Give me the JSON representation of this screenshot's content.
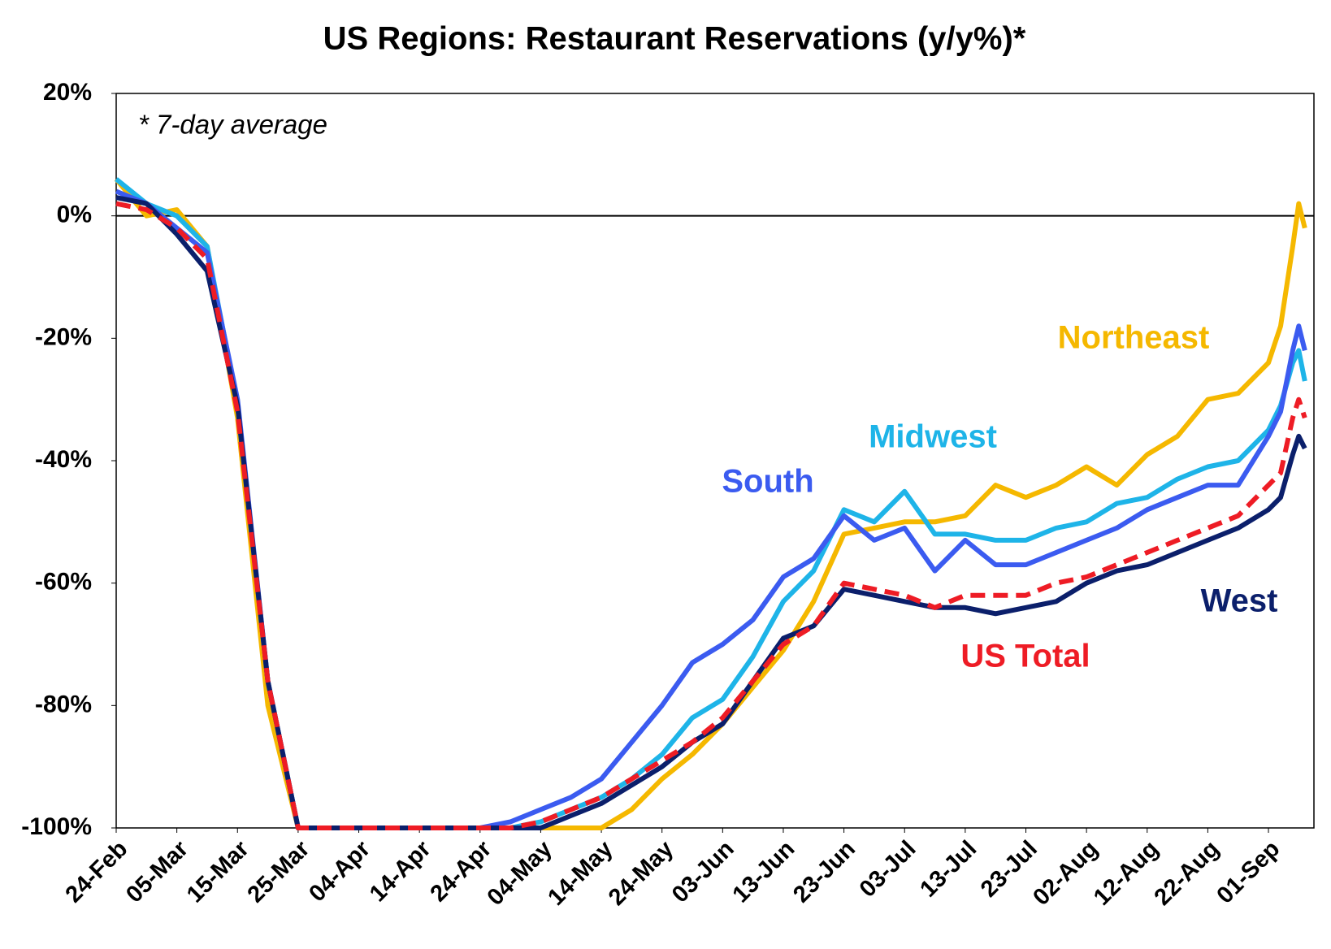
{
  "chart_data": {
    "type": "line",
    "title": "US Regions: Restaurant Reservations (y/y%)*",
    "annotation": "* 7-day average",
    "x": [
      "24-Feb",
      "29-Feb",
      "05-Mar",
      "10-Mar",
      "15-Mar",
      "20-Mar",
      "25-Mar",
      "30-Mar",
      "04-Apr",
      "09-Apr",
      "14-Apr",
      "19-Apr",
      "24-Apr",
      "29-Apr",
      "04-May",
      "09-May",
      "14-May",
      "19-May",
      "24-May",
      "29-May",
      "03-Jun",
      "08-Jun",
      "13-Jun",
      "18-Jun",
      "23-Jun",
      "28-Jun",
      "03-Jul",
      "08-Jul",
      "13-Jul",
      "18-Jul",
      "23-Jul",
      "28-Jul",
      "02-Aug",
      "07-Aug",
      "12-Aug",
      "17-Aug",
      "22-Aug",
      "27-Aug",
      "01-Sep",
      "03-Sep",
      "05-Sep",
      "06-Sep",
      "07-Sep"
    ],
    "series": [
      {
        "name": "Northeast",
        "color": "#f5b800",
        "values": [
          6,
          0,
          1,
          -5,
          -33,
          -80,
          -100,
          -100,
          -100,
          -100,
          -100,
          -100,
          -100,
          -100,
          -100,
          -100,
          -100,
          -97,
          -92,
          -88,
          -83,
          -77,
          -71,
          -63,
          -52,
          -51,
          -50,
          -50,
          -49,
          -44,
          -46,
          -44,
          -41,
          -44,
          -39,
          -36,
          -30,
          -29,
          -24,
          -18,
          -5,
          2,
          -2
        ]
      },
      {
        "name": "Midwest",
        "color": "#1eb4e8",
        "values": [
          6,
          2,
          0,
          -5,
          -31,
          -76,
          -100,
          -100,
          -100,
          -100,
          -100,
          -100,
          -100,
          -100,
          -99,
          -97,
          -95,
          -92,
          -88,
          -82,
          -79,
          -72,
          -63,
          -58,
          -48,
          -50,
          -45,
          -52,
          -52,
          -53,
          -53,
          -51,
          -50,
          -47,
          -46,
          -43,
          -41,
          -40,
          -35,
          -31,
          -24,
          -22,
          -27
        ]
      },
      {
        "name": "South",
        "color": "#3b5bf0",
        "values": [
          4,
          2,
          -2,
          -6,
          -30,
          -76,
          -100,
          -100,
          -100,
          -100,
          -100,
          -100,
          -100,
          -99,
          -97,
          -95,
          -92,
          -86,
          -80,
          -73,
          -70,
          -66,
          -59,
          -56,
          -49,
          -53,
          -51,
          -58,
          -53,
          -57,
          -57,
          -55,
          -53,
          -51,
          -48,
          -46,
          -44,
          -44,
          -36,
          -32,
          -22,
          -18,
          -22
        ]
      },
      {
        "name": "West",
        "color": "#0b1f6b",
        "values": [
          3,
          2,
          -3,
          -9,
          -31,
          -76,
          -100,
          -100,
          -100,
          -100,
          -100,
          -100,
          -100,
          -100,
          -100,
          -98,
          -96,
          -93,
          -90,
          -86,
          -83,
          -76,
          -69,
          -67,
          -61,
          -62,
          -63,
          -64,
          -64,
          -65,
          -64,
          -63,
          -60,
          -58,
          -57,
          -55,
          -53,
          -51,
          -48,
          -46,
          -39,
          -36,
          -38
        ]
      },
      {
        "name": "US Total",
        "color": "#ee1c25",
        "dashed": true,
        "values": [
          2,
          1,
          -2,
          -7,
          -32,
          -76,
          -100,
          -100,
          -100,
          -100,
          -100,
          -100,
          -100,
          -100,
          -99,
          -97,
          -95,
          -92,
          -89,
          -86,
          -82,
          -76,
          -70,
          -67,
          -60,
          -61,
          -62,
          -64,
          -62,
          -62,
          -62,
          -60,
          -59,
          -57,
          -55,
          -53,
          -51,
          -49,
          -44,
          -42,
          -33,
          -30,
          -33
        ]
      }
    ],
    "xticks": [
      "24-Feb",
      "05-Mar",
      "15-Mar",
      "25-Mar",
      "04-Apr",
      "14-Apr",
      "24-Apr",
      "04-May",
      "14-May",
      "24-May",
      "03-Jun",
      "13-Jun",
      "23-Jun",
      "03-Jul",
      "13-Jul",
      "23-Jul",
      "02-Aug",
      "12-Aug",
      "22-Aug",
      "01-Sep"
    ],
    "ylim": [
      -100,
      20
    ],
    "yticks": [
      {
        "value": 20,
        "label": "20%"
      },
      {
        "value": 0,
        "label": "0%"
      },
      {
        "value": -20,
        "label": "-20%"
      },
      {
        "value": -40,
        "label": "-40%"
      },
      {
        "value": -60,
        "label": "-60%"
      },
      {
        "value": -80,
        "label": "-80%"
      },
      {
        "value": -100,
        "label": "-100%"
      }
    ],
    "zero_line": true
  }
}
